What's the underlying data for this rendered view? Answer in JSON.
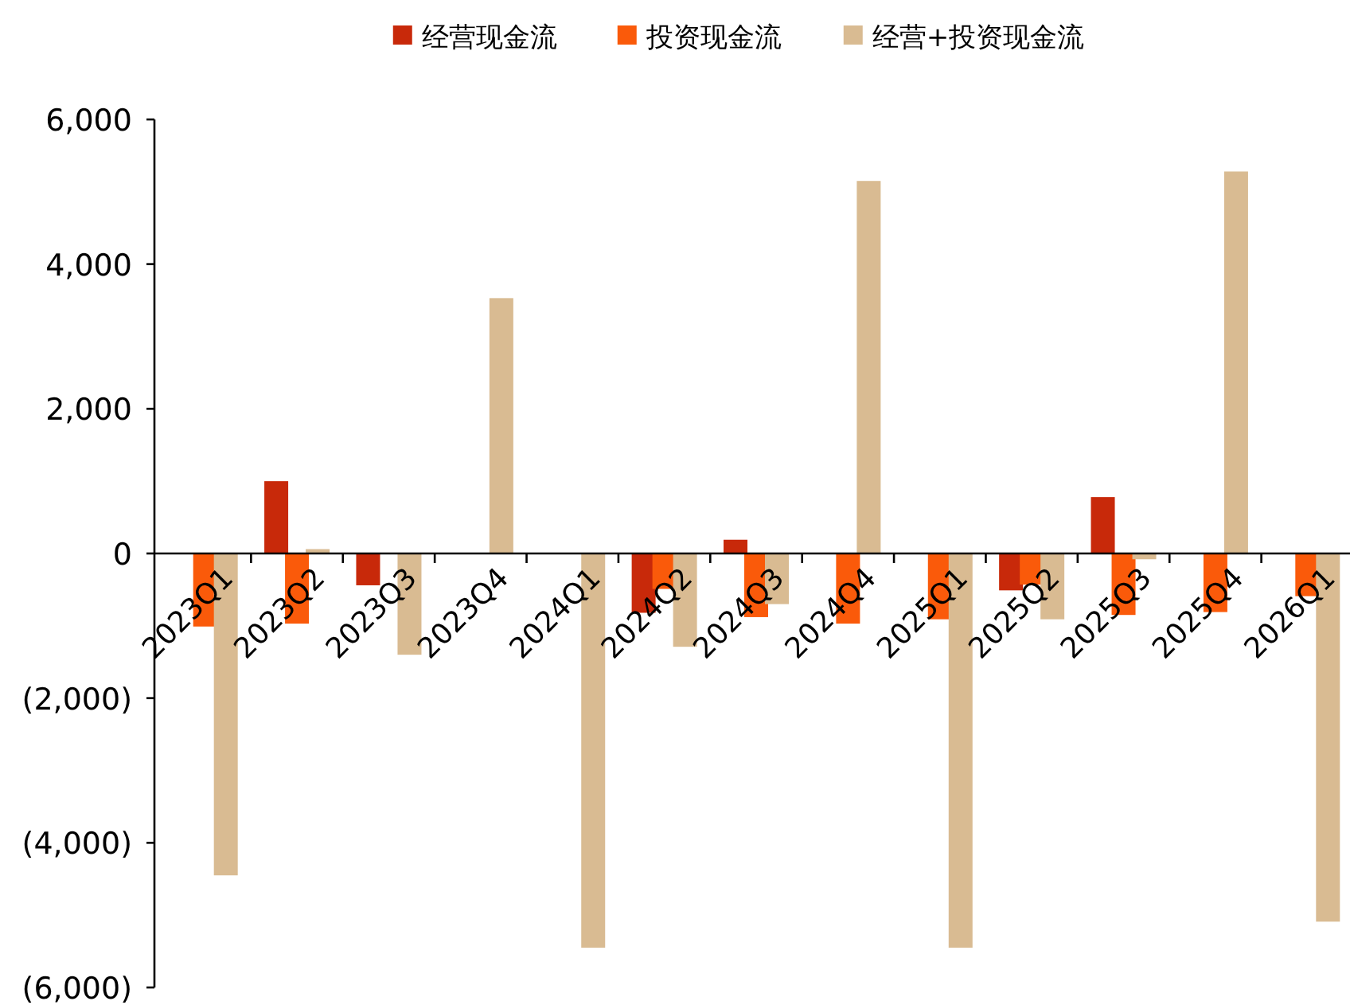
{
  "chart_data": {
    "type": "bar",
    "categories": [
      "2023Q1",
      "2023Q2",
      "2023Q3",
      "2023Q4",
      "2024Q1",
      "2024Q2",
      "2024Q3",
      "2024Q4",
      "2025Q1",
      "2025Q2",
      "2025Q3",
      "2025Q4",
      "2026Q1"
    ],
    "series": [
      {
        "name": "经营现金流",
        "color": "#c8290a",
        "values": [
          null,
          1000,
          -440,
          null,
          null,
          -820,
          190,
          null,
          null,
          -510,
          780,
          null,
          null
        ]
      },
      {
        "name": "投资现金流",
        "color": "#fa5a0a",
        "values": [
          -1010,
          -970,
          null,
          null,
          null,
          -490,
          -880,
          -970,
          -910,
          -430,
          -850,
          -810,
          -590
        ]
      },
      {
        "name": "经营+投资现金流",
        "color": "#d9bb92",
        "values": [
          -4450,
          60,
          -1400,
          3530,
          -5450,
          -1290,
          -700,
          5150,
          -5450,
          -910,
          -80,
          5280,
          -5090
        ]
      }
    ],
    "ylim": [
      -6000,
      6000
    ],
    "yticks": [
      {
        "value": -6000,
        "label": "(6,000)"
      },
      {
        "value": -4000,
        "label": "(4,000)"
      },
      {
        "value": -2000,
        "label": "(2,000)"
      },
      0,
      {
        "value": 2000,
        "label": "2,000"
      },
      {
        "value": 4000,
        "label": "4,000"
      },
      {
        "value": 6000,
        "label": "6,000"
      }
    ],
    "legend": "top",
    "grid": false
  }
}
